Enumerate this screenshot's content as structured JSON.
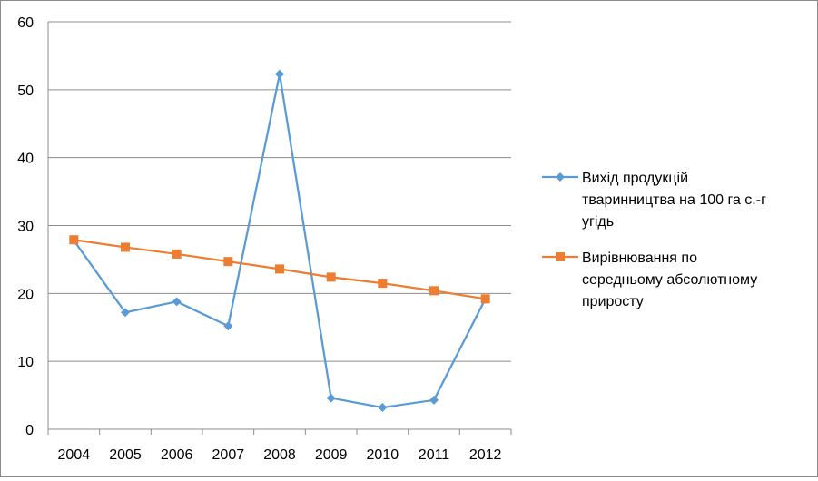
{
  "chart_data": {
    "type": "line",
    "categories": [
      "2004",
      "2005",
      "2006",
      "2007",
      "2008",
      "2009",
      "2010",
      "2011",
      "2012"
    ],
    "ylim": [
      0,
      60
    ],
    "yticks": [
      0,
      10,
      20,
      30,
      40,
      50,
      60
    ],
    "grid": true,
    "legend_position": "right",
    "series": [
      {
        "name": "Вихід продукцій тваринництва на 100 га с.-г угідь",
        "legend_lines": [
          "Вихід продукцій",
          "тваринництва на 100 га с.-г",
          "угідь"
        ],
        "color": "#5b9bd5",
        "marker": "diamond",
        "values": [
          27.8,
          17.2,
          18.8,
          15.2,
          52.3,
          4.6,
          3.2,
          4.3,
          19.2
        ]
      },
      {
        "name": "Вирівнювання по середньому абсолютному приросту",
        "legend_lines": [
          "Вирівнювання по",
          "середньому абсолютному",
          "приросту"
        ],
        "color": "#ed7d31",
        "marker": "square",
        "values": [
          27.9,
          26.8,
          25.8,
          24.7,
          23.6,
          22.4,
          21.5,
          20.4,
          19.2
        ]
      }
    ]
  }
}
